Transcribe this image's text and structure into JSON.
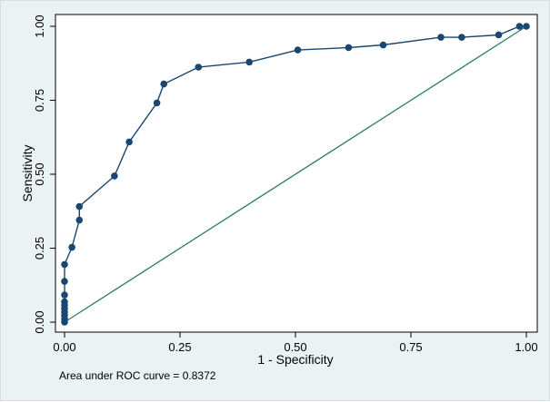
{
  "chart_data": {
    "type": "line",
    "xlabel": "1 - Specificity",
    "ylabel": "Sensitivity",
    "xlim": [
      0,
      1
    ],
    "ylim": [
      0,
      1
    ],
    "x_ticks": [
      "0.00",
      "0.25",
      "0.50",
      "0.75",
      "1.00"
    ],
    "y_ticks": [
      "0.00",
      "0.25",
      "0.50",
      "0.75",
      "1.00"
    ],
    "grid": false,
    "series": [
      {
        "type": "line-markers",
        "color": "#1a476f",
        "points": [
          [
            0.0,
            0.0
          ],
          [
            0.0,
            0.011
          ],
          [
            0.0,
            0.023
          ],
          [
            0.0,
            0.034
          ],
          [
            0.0,
            0.046
          ],
          [
            0.0,
            0.057
          ],
          [
            0.0,
            0.069
          ],
          [
            0.0,
            0.092
          ],
          [
            0.0,
            0.138
          ],
          [
            0.0,
            0.195
          ],
          [
            0.016,
            0.253
          ],
          [
            0.032,
            0.345
          ],
          [
            0.032,
            0.391
          ],
          [
            0.108,
            0.494
          ],
          [
            0.14,
            0.609
          ],
          [
            0.2,
            0.741
          ],
          [
            0.215,
            0.805
          ],
          [
            0.29,
            0.862
          ],
          [
            0.4,
            0.879
          ],
          [
            0.505,
            0.92
          ],
          [
            0.615,
            0.928
          ],
          [
            0.69,
            0.937
          ],
          [
            0.815,
            0.963
          ],
          [
            0.86,
            0.963
          ],
          [
            0.94,
            0.971
          ],
          [
            0.985,
            1.0
          ],
          [
            1.0,
            1.0
          ]
        ]
      },
      {
        "type": "reference-line",
        "color": "#2e7d6f",
        "points": [
          [
            0,
            0
          ],
          [
            1,
            1
          ]
        ]
      }
    ],
    "annotation": "Area under ROC curve = 0.8372"
  }
}
